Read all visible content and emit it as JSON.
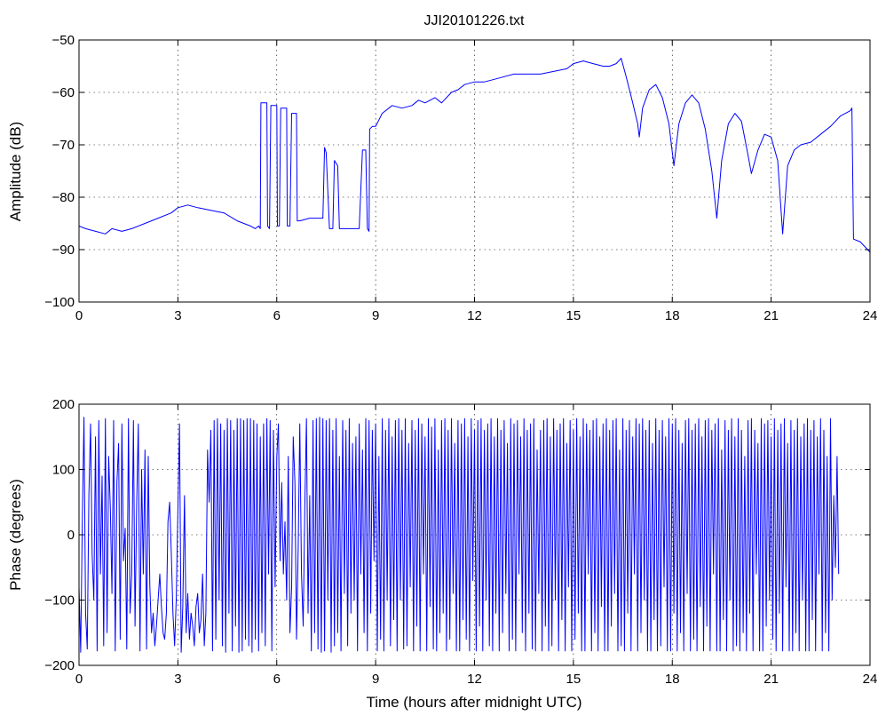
{
  "colors": {
    "series": "#0000ff",
    "axes": "#000000",
    "background": "#ffffff"
  },
  "chart_data": [
    {
      "type": "line",
      "title": "JJI20101226.txt",
      "xlabel": "",
      "ylabel": "Amplitude (dB)",
      "xlim": [
        0,
        24
      ],
      "ylim": [
        -100,
        -50
      ],
      "xticks": [
        0,
        3,
        6,
        9,
        12,
        15,
        18,
        21,
        24
      ],
      "yticks": [
        -100,
        -90,
        -80,
        -70,
        -60,
        -50
      ],
      "grid": true,
      "series": [
        {
          "x": [
            0,
            0.2,
            0.5,
            0.8,
            1.0,
            1.3,
            1.6,
            2.0,
            2.4,
            2.8,
            3.0,
            3.3,
            3.6,
            4.0,
            4.4,
            4.8,
            5.0,
            5.2,
            5.35,
            5.45,
            5.5,
            5.52,
            5.7,
            5.72,
            5.78,
            5.82,
            6.0,
            6.02,
            6.08,
            6.12,
            6.3,
            6.32,
            6.4,
            6.45,
            6.6,
            6.62,
            6.7,
            7.0,
            7.4,
            7.45,
            7.5,
            7.6,
            7.7,
            7.75,
            7.85,
            7.9,
            8.1,
            8.5,
            8.6,
            8.7,
            8.75,
            8.8,
            8.82,
            8.9,
            9.0,
            9.2,
            9.5,
            9.8,
            10.1,
            10.3,
            10.5,
            10.8,
            11.0,
            11.3,
            11.5,
            11.7,
            12.0,
            12.3,
            12.6,
            12.9,
            13.2,
            13.6,
            14.0,
            14.4,
            14.8,
            15.0,
            15.3,
            15.6,
            15.9,
            16.1,
            16.3,
            16.45,
            16.6,
            16.8,
            16.95,
            17.0,
            17.1,
            17.3,
            17.5,
            17.7,
            17.9,
            18.05,
            18.2,
            18.4,
            18.6,
            18.8,
            19.0,
            19.2,
            19.35,
            19.5,
            19.7,
            19.9,
            20.1,
            20.3,
            20.4,
            20.6,
            20.8,
            21.0,
            21.2,
            21.35,
            21.5,
            21.7,
            21.9,
            22.2,
            22.5,
            22.8,
            23.1,
            23.4,
            23.45,
            23.5,
            23.7,
            24.0
          ],
          "values": [
            -85.5,
            -86,
            -86.5,
            -87,
            -86,
            -86.5,
            -86,
            -85,
            -84,
            -83,
            -82,
            -81.5,
            -82,
            -82.5,
            -83,
            -84.5,
            -85,
            -85.5,
            -86,
            -85.5,
            -86,
            -62,
            -62,
            -85.5,
            -86,
            -62.5,
            -62.5,
            -85.5,
            -85.5,
            -63,
            -63,
            -85.5,
            -85.5,
            -64,
            -64,
            -84.5,
            -84.5,
            -84,
            -84,
            -70.5,
            -71.5,
            -86,
            -86,
            -73,
            -74,
            -86,
            -86,
            -86,
            -71,
            -71,
            -86,
            -86.5,
            -67,
            -66.5,
            -66.5,
            -64,
            -62.5,
            -63,
            -62.5,
            -61.5,
            -62,
            -61,
            -62,
            -60,
            -59.5,
            -58.5,
            -58,
            -58,
            -57.5,
            -57,
            -56.5,
            -56.5,
            -56.5,
            -56,
            -55.5,
            -54.5,
            -54,
            -54.5,
            -55,
            -55,
            -54.5,
            -53.5,
            -57,
            -62,
            -66,
            -68.5,
            -63,
            -59.5,
            -58.5,
            -61,
            -66,
            -74,
            -66,
            -62,
            -60.5,
            -62,
            -67,
            -75,
            -84,
            -73,
            -66,
            -64,
            -65.5,
            -72,
            -75.5,
            -71,
            -68,
            -68.5,
            -73,
            -87,
            -74,
            -71,
            -70,
            -69.5,
            -68,
            -66.5,
            -64.5,
            -63.5,
            -63,
            -88,
            -88.5,
            -90.5
          ]
        }
      ]
    },
    {
      "type": "line",
      "title": "",
      "xlabel": "Time (hours after midnight UTC)",
      "ylabel": "Phase (degrees)",
      "xlim": [
        0,
        24
      ],
      "ylim": [
        -200,
        200
      ],
      "xticks": [
        0,
        3,
        6,
        9,
        12,
        15,
        18,
        21,
        24
      ],
      "yticks": [
        -200,
        -100,
        0,
        100,
        200
      ],
      "grid": true,
      "series": [
        {
          "x_step": 0.05,
          "values": [
            -80,
            -180,
            20,
            180,
            -120,
            -175,
            60,
            170,
            -30,
            -100,
            150,
            -178,
            175,
            -60,
            90,
            -170,
            178,
            -150,
            120,
            40,
            -90,
            175,
            -178,
            80,
            140,
            -160,
            170,
            -40,
            10,
            -175,
            178,
            -120,
            -60,
            175,
            -140,
            50,
            170,
            -178,
            100,
            -60,
            130,
            -175,
            120,
            -80,
            -150,
            -120,
            -170,
            -140,
            -100,
            -60,
            -110,
            -150,
            -160,
            -120,
            20,
            50,
            -30,
            -120,
            -170,
            -100,
            40,
            170,
            -180,
            -110,
            60,
            -150,
            -90,
            -160,
            -120,
            -140,
            -170,
            -110,
            -90,
            -150,
            -130,
            -60,
            -170,
            -120,
            130,
            50,
            160,
            -178,
            175,
            -160,
            178,
            -100,
            170,
            -170,
            160,
            -180,
            178,
            -120,
            175,
            -178,
            160,
            -140,
            178,
            -180,
            178,
            -178,
            175,
            -160,
            178,
            -170,
            178,
            -180,
            175,
            -160,
            170,
            -178,
            150,
            -150,
            170,
            -170,
            178,
            -60,
            175,
            -178,
            160,
            -80,
            120,
            170,
            -40,
            80,
            -60,
            20,
            -100,
            120,
            -150,
            -80,
            150,
            80,
            -160,
            -20,
            170,
            -60,
            -140,
            40,
            178,
            -120,
            60,
            -178,
            175,
            -150,
            178,
            -175,
            180,
            -180,
            178,
            -178,
            175,
            -100,
            178,
            -180,
            160,
            -170,
            178,
            -150,
            120,
            -178,
            175,
            -90,
            160,
            -170,
            178,
            -120,
            140,
            -100,
            150,
            -178,
            170,
            -60,
            130,
            -150,
            178,
            -178,
            175,
            -120,
            160,
            -40,
            170,
            -178,
            120,
            -160,
            178,
            -178,
            160,
            -100,
            178,
            -170,
            150,
            -130,
            175,
            -178,
            178,
            -100,
            160,
            -175,
            178,
            -170,
            140,
            -80,
            175,
            -178,
            160,
            -140,
            178,
            -178,
            170,
            -60,
            150,
            -178,
            178,
            -110,
            165,
            -175,
            178,
            -178,
            130,
            -150,
            175,
            -120,
            178,
            -178,
            160,
            -160,
            178,
            -90,
            140,
            -178,
            175,
            -178,
            170,
            -130,
            178,
            -160,
            150,
            -178,
            178,
            -70,
            160,
            -178,
            175,
            -140,
            178,
            -178,
            160,
            -100,
            170,
            -170,
            178,
            -178,
            150,
            -120,
            178,
            -178,
            160,
            -150,
            175,
            -90,
            140,
            -178,
            178,
            -160,
            170,
            -178,
            175,
            -60,
            150,
            -150,
            178,
            -178,
            160,
            -120,
            170,
            -175,
            178,
            -178,
            130,
            -90,
            160,
            -178,
            175,
            -140,
            178,
            -178,
            150,
            -170,
            178,
            -100,
            160,
            -178,
            170,
            -130,
            178,
            -178,
            140,
            -80,
            175,
            -178,
            160,
            -160,
            178,
            -120,
            150,
            -178,
            178,
            -178,
            170,
            -60,
            160,
            -178,
            175,
            -150,
            178,
            -178,
            150,
            -110,
            170,
            -178,
            178,
            -178,
            160,
            -140,
            175,
            -90,
            178,
            -178,
            130,
            -170,
            178,
            -178,
            160,
            -120,
            175,
            -178,
            150,
            -60,
            178,
            -178,
            170,
            -150,
            178,
            -100,
            160,
            -178,
            175,
            -178,
            140,
            -130,
            178,
            -178,
            160,
            -170,
            175,
            -80,
            150,
            -178,
            178,
            -178,
            170,
            -120,
            178,
            -178,
            160,
            -150,
            140,
            -178,
            175,
            -90,
            178,
            -178,
            160,
            -160,
            170,
            -178,
            178,
            -110,
            150,
            -178,
            175,
            -140,
            178,
            -178,
            160,
            -60,
            170,
            -178,
            178,
            -178,
            130,
            -130,
            175,
            -178,
            160,
            -100,
            178,
            -178,
            150,
            -170,
            178,
            -178,
            160,
            -150,
            120,
            -178,
            175,
            -120,
            178,
            -178,
            160,
            -60,
            140,
            -178,
            178,
            -178,
            170,
            -140,
            175,
            -100,
            150,
            -160,
            178,
            -178,
            160,
            -120,
            170,
            -178,
            178,
            -80,
            140,
            -178,
            175,
            -178,
            160,
            -150,
            178,
            -178,
            150,
            -100,
            170,
            -178,
            178,
            -178,
            160,
            -130,
            175,
            -178,
            150,
            -60,
            178,
            -178,
            160,
            -150,
            120,
            -178,
            178,
            -100,
            60,
            -50,
            120,
            -60
          ]
        }
      ]
    }
  ]
}
